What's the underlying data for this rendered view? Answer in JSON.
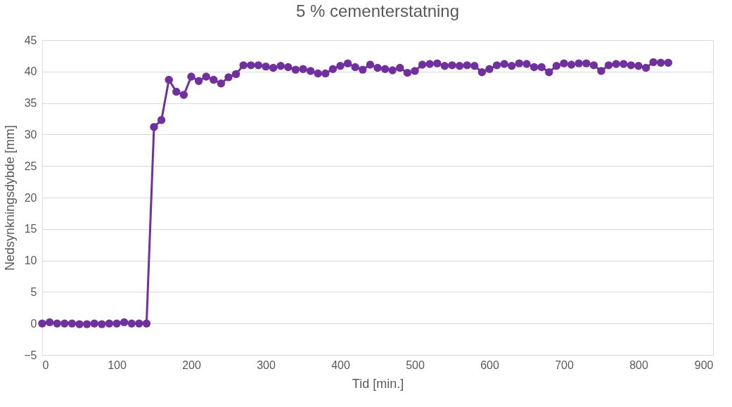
{
  "chart_data": {
    "type": "line",
    "title": "5 % cementerstatning",
    "xlabel": "Tid [min.]",
    "ylabel": "Nedsynkningsdybde [mm]",
    "x": [
      0,
      10,
      20,
      30,
      40,
      50,
      60,
      70,
      80,
      90,
      100,
      110,
      120,
      130,
      140,
      150,
      160,
      170,
      180,
      190,
      200,
      210,
      220,
      230,
      240,
      250,
      260,
      270,
      280,
      290,
      300,
      310,
      320,
      330,
      340,
      350,
      360,
      370,
      380,
      390,
      400,
      410,
      420,
      430,
      440,
      450,
      460,
      470,
      480,
      490,
      500,
      510,
      520,
      530,
      540,
      550,
      560,
      570,
      580,
      590,
      600,
      610,
      620,
      630,
      640,
      650,
      660,
      670,
      680,
      690,
      700,
      710,
      720,
      730,
      740,
      750,
      760,
      770,
      780,
      790,
      800,
      810,
      820,
      830,
      840
    ],
    "series": [
      {
        "color": "#7030a0",
        "values": [
          0,
          0.2,
          0,
          0,
          0,
          -0.1,
          -0.1,
          0,
          -0.1,
          0,
          0,
          0.2,
          0,
          0,
          0,
          31.2,
          32.3,
          38.7,
          36.8,
          36.3,
          39.2,
          38.5,
          39.2,
          38.7,
          38.1,
          39.1,
          39.6,
          41.0,
          41.0,
          41.0,
          40.8,
          40.6,
          40.9,
          40.7,
          40.3,
          40.4,
          40.1,
          39.7,
          39.7,
          40.4,
          40.9,
          41.3,
          40.7,
          40.3,
          41.1,
          40.6,
          40.4,
          40.2,
          40.6,
          39.8,
          40.1,
          41.1,
          41.2,
          41.3,
          40.9,
          41.0,
          40.9,
          41.0,
          40.9,
          39.9,
          40.4,
          41.0,
          41.2,
          40.9,
          41.3,
          41.2,
          40.7,
          40.7,
          39.9,
          40.9,
          41.3,
          41.1,
          41.3,
          41.3,
          41.0,
          40.1,
          41.0,
          41.2,
          41.2,
          41.0,
          40.9,
          40.6,
          41.5,
          41.4,
          41.4
        ]
      }
    ],
    "xlim": [
      0,
      900
    ],
    "xticks": [
      0,
      100,
      200,
      300,
      400,
      500,
      600,
      700,
      800,
      900
    ],
    "ylim": [
      -5,
      45
    ],
    "yticks": [
      -5,
      0,
      5,
      10,
      15,
      20,
      25,
      30,
      35,
      40,
      45
    ],
    "grid": "y",
    "marker": "circle",
    "line_style": "solid"
  }
}
